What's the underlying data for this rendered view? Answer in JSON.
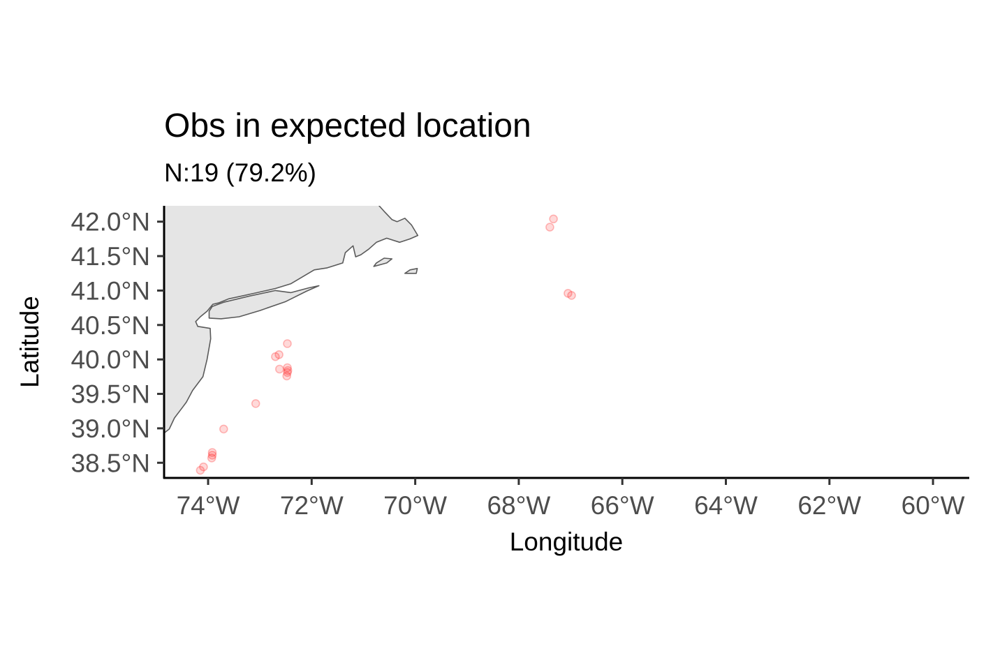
{
  "chart_data": {
    "type": "scatter",
    "title": "Obs in expected location",
    "subtitle": "N:19 (79.2%)",
    "xlabel": "Longitude",
    "ylabel": "Latitude",
    "xlim": [
      -74.85,
      -59.3
    ],
    "ylim": [
      38.28,
      42.23
    ],
    "x_ticks": [
      -74,
      -72,
      -70,
      -68,
      -66,
      -64,
      -62,
      -60
    ],
    "x_tick_labels": [
      "74°W",
      "72°W",
      "70°W",
      "68°W",
      "66°W",
      "64°W",
      "62°W",
      "60°W"
    ],
    "y_ticks": [
      38.5,
      39.0,
      39.5,
      40.0,
      40.5,
      41.0,
      41.5,
      42.0
    ],
    "y_tick_labels": [
      "38.5°N",
      "39.0°N",
      "39.5°N",
      "40.0°N",
      "40.5°N",
      "41.0°N",
      "41.5°N",
      "42.0°N"
    ],
    "grid": false,
    "point_color": "#ff0000",
    "point_opacity": 0.15,
    "land_fill": "#e5e5e5",
    "land_stroke": "#5a5a5a",
    "series": [
      {
        "points": [
          {
            "x": -67.33,
            "y": 42.04
          },
          {
            "x": -67.4,
            "y": 41.92
          },
          {
            "x": -67.05,
            "y": 40.96
          },
          {
            "x": -66.98,
            "y": 40.93
          },
          {
            "x": -72.47,
            "y": 40.23
          },
          {
            "x": -72.7,
            "y": 40.04
          },
          {
            "x": -72.63,
            "y": 40.07
          },
          {
            "x": -72.62,
            "y": 39.86
          },
          {
            "x": -72.47,
            "y": 39.88
          },
          {
            "x": -72.46,
            "y": 39.84
          },
          {
            "x": -72.47,
            "y": 39.81
          },
          {
            "x": -72.48,
            "y": 39.76
          },
          {
            "x": -73.08,
            "y": 39.36
          },
          {
            "x": -73.7,
            "y": 38.99
          },
          {
            "x": -73.92,
            "y": 38.65
          },
          {
            "x": -73.92,
            "y": 38.61
          },
          {
            "x": -73.93,
            "y": 38.57
          },
          {
            "x": -74.09,
            "y": 38.44
          },
          {
            "x": -74.15,
            "y": 38.39
          }
        ]
      }
    ],
    "coastline": {
      "mainland": [
        [
          -74.85,
          38.93
        ],
        [
          -74.75,
          38.99
        ],
        [
          -74.65,
          39.15
        ],
        [
          -74.5,
          39.3
        ],
        [
          -74.42,
          39.38
        ],
        [
          -74.3,
          39.55
        ],
        [
          -74.1,
          39.75
        ],
        [
          -74.02,
          40.0
        ],
        [
          -73.95,
          40.3
        ],
        [
          -73.96,
          40.45
        ],
        [
          -74.2,
          40.48
        ],
        [
          -74.24,
          40.55
        ],
        [
          -74.15,
          40.62
        ],
        [
          -74.02,
          40.7
        ],
        [
          -73.91,
          40.8
        ],
        [
          -73.8,
          40.82
        ],
        [
          -73.6,
          40.88
        ],
        [
          -73.35,
          40.92
        ],
        [
          -73.05,
          40.97
        ],
        [
          -72.7,
          41.03
        ],
        [
          -72.4,
          41.1
        ],
        [
          -71.95,
          41.3
        ],
        [
          -71.7,
          41.33
        ],
        [
          -71.4,
          41.4
        ],
        [
          -71.35,
          41.55
        ],
        [
          -71.2,
          41.65
        ],
        [
          -71.15,
          41.49
        ],
        [
          -71.05,
          41.52
        ],
        [
          -70.9,
          41.6
        ],
        [
          -70.75,
          41.7
        ],
        [
          -70.55,
          41.76
        ],
        [
          -70.3,
          41.7
        ],
        [
          -70.1,
          41.75
        ],
        [
          -69.95,
          41.8
        ],
        [
          -70.07,
          41.95
        ],
        [
          -70.2,
          42.05
        ],
        [
          -70.35,
          42.0
        ],
        [
          -70.45,
          42.03
        ],
        [
          -70.6,
          42.15
        ],
        [
          -70.72,
          42.25
        ],
        [
          -74.85,
          42.25
        ]
      ],
      "long_island": [
        [
          -73.98,
          40.6
        ],
        [
          -73.75,
          40.59
        ],
        [
          -73.4,
          40.62
        ],
        [
          -73.0,
          40.71
        ],
        [
          -72.5,
          40.84
        ],
        [
          -72.1,
          40.99
        ],
        [
          -71.86,
          41.07
        ],
        [
          -72.05,
          41.04
        ],
        [
          -72.4,
          40.97
        ],
        [
          -72.7,
          41.0
        ],
        [
          -73.2,
          40.92
        ],
        [
          -73.7,
          40.83
        ],
        [
          -73.92,
          40.77
        ],
        [
          -73.98,
          40.7
        ]
      ],
      "marthas_vineyard": [
        [
          -70.8,
          41.35
        ],
        [
          -70.55,
          41.4
        ],
        [
          -70.45,
          41.46
        ],
        [
          -70.6,
          41.47
        ],
        [
          -70.75,
          41.4
        ]
      ],
      "nantucket": [
        [
          -70.2,
          41.25
        ],
        [
          -69.98,
          41.25
        ],
        [
          -69.96,
          41.32
        ],
        [
          -70.1,
          41.3
        ]
      ]
    }
  }
}
